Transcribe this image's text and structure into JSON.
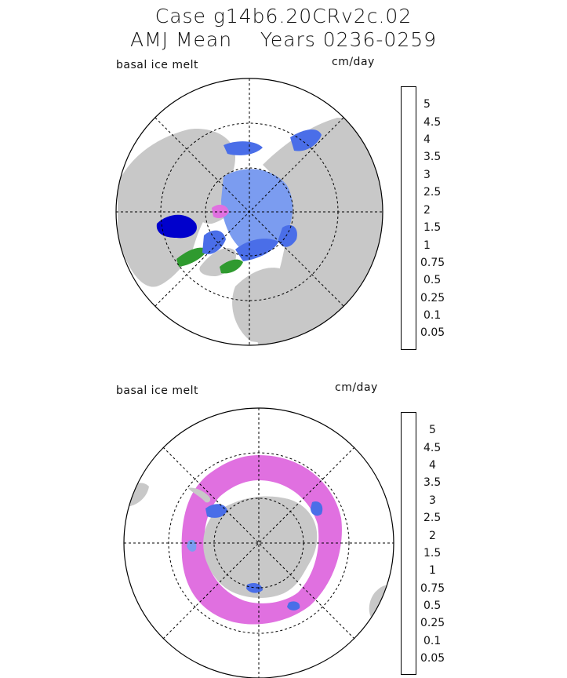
{
  "header": {
    "line1": "Case g14b6.20CRv2c.02",
    "line2": "AMJ Mean    Years 0236-0259"
  },
  "colors": {
    "land": "#c8c8c8",
    "ocean": "#ffffff",
    "scale": [
      "#8b0000",
      "#d42a1b",
      "#f04a10",
      "#fe6a00",
      "#ff9810",
      "#ffc400",
      "#ffe000",
      "#98c43c",
      "#2f9a2f",
      "#006400",
      "#0000cc",
      "#4a6ee8",
      "#7b9cf0",
      "#9370db",
      "#e070e0"
    ]
  },
  "maps": [
    {
      "id": "north",
      "variable_label": "basal ice melt",
      "units_label": "cm/day",
      "colorbar_labels": [
        "5",
        "4.5",
        "4",
        "3.5",
        "3",
        "2.5",
        "2",
        "1.5",
        "1",
        "0.75",
        "0.5",
        "0.25",
        "0.1",
        "0.05"
      ]
    },
    {
      "id": "south",
      "variable_label": "basal ice melt",
      "units_label": "cm/day",
      "colorbar_labels": [
        "5",
        "4.5",
        "4",
        "3.5",
        "3",
        "2.5",
        "2",
        "1.5",
        "1",
        "0.75",
        "0.5",
        "0.25",
        "0.1",
        "0.05"
      ]
    }
  ]
}
